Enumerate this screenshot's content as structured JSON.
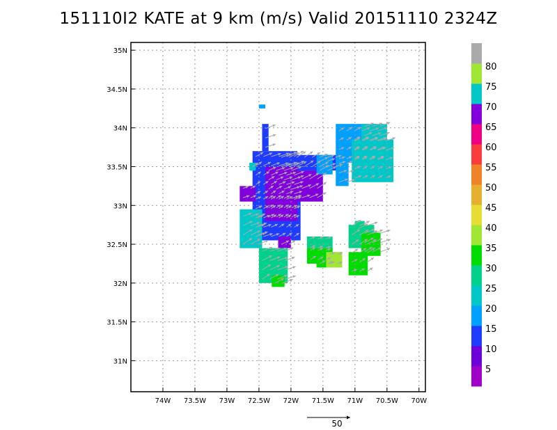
{
  "title": "151110I2 KATE at 9 km (m/s) Valid 20151110 2324Z",
  "chart_data": {
    "type": "heatmap",
    "title": "151110I2 KATE at 9 km (m/s) Valid 20151110 2324Z",
    "xlim": [
      -74.5,
      -69.9
    ],
    "ylim": [
      30.6,
      35.1
    ],
    "x_ticks": [
      {
        "value": -74.0,
        "label": "74W"
      },
      {
        "value": -73.5,
        "label": "73.5W"
      },
      {
        "value": -73.0,
        "label": "73W"
      },
      {
        "value": -72.5,
        "label": "72.5W"
      },
      {
        "value": -72.0,
        "label": "72W"
      },
      {
        "value": -71.5,
        "label": "71.5W"
      },
      {
        "value": -71.0,
        "label": "71W"
      },
      {
        "value": -70.5,
        "label": "70.5W"
      },
      {
        "value": -70.0,
        "label": "70W"
      }
    ],
    "y_ticks": [
      {
        "value": 31.0,
        "label": "31N"
      },
      {
        "value": 31.5,
        "label": "31.5N"
      },
      {
        "value": 32.0,
        "label": "32N"
      },
      {
        "value": 32.5,
        "label": "32.5N"
      },
      {
        "value": 33.0,
        "label": "33N"
      },
      {
        "value": 33.5,
        "label": "33.5N"
      },
      {
        "value": 34.0,
        "label": "34N"
      },
      {
        "value": 34.5,
        "label": "34.5N"
      },
      {
        "value": 35.0,
        "label": "35N"
      }
    ],
    "grid": true,
    "colorbar": {
      "labels": [
        "5",
        "10",
        "15",
        "20",
        "25",
        "30",
        "35",
        "40",
        "45",
        "50",
        "55",
        "60",
        "65",
        "70",
        "75",
        "80"
      ],
      "colors": [
        "#a000c8",
        "#6e00dc",
        "#1e3cff",
        "#00a0ff",
        "#00c8c8",
        "#00d28c",
        "#00dc00",
        "#a0e632",
        "#e6dc32",
        "#e6af2d",
        "#f08228",
        "#fa3c3c",
        "#f00082",
        "#8200dc",
        "#00c8c8",
        "#a0e632",
        "#aaaaaa"
      ]
    },
    "regions": [
      {
        "color": "#00a0ff",
        "value": 15,
        "cells": [
          [
            -72.5,
            34.25,
            -72.4,
            34.3
          ]
        ]
      },
      {
        "color": "#1e3cff",
        "value": 10,
        "cells": [
          [
            -72.6,
            33.1,
            -71.9,
            33.7
          ],
          [
            -72.6,
            32.55,
            -71.85,
            33.1
          ],
          [
            -72.45,
            33.7,
            -72.35,
            34.05
          ],
          [
            -72.2,
            33.45,
            -71.2,
            33.65
          ]
        ]
      },
      {
        "color": "#8200dc",
        "value": 5,
        "cells": [
          [
            -72.4,
            32.8,
            -71.9,
            33.5
          ],
          [
            -72.0,
            33.05,
            -71.5,
            33.45
          ],
          [
            -72.8,
            33.05,
            -72.55,
            33.25
          ],
          [
            -72.2,
            32.45,
            -72.0,
            32.6
          ]
        ]
      },
      {
        "color": "#00a0ff",
        "value": 15,
        "cells": [
          [
            -71.3,
            33.55,
            -70.6,
            34.05
          ],
          [
            -71.3,
            33.25,
            -71.1,
            33.6
          ],
          [
            -71.6,
            33.4,
            -71.35,
            33.65
          ]
        ]
      },
      {
        "color": "#00c8c8",
        "value": 20,
        "cells": [
          [
            -72.8,
            32.45,
            -72.45,
            32.95
          ],
          [
            -71.05,
            33.3,
            -70.4,
            33.85
          ],
          [
            -70.9,
            33.85,
            -70.5,
            34.05
          ],
          [
            -72.65,
            33.45,
            -72.55,
            33.55
          ]
        ]
      },
      {
        "color": "#00d28c",
        "value": 25,
        "cells": [
          [
            -72.5,
            32.0,
            -72.05,
            32.45
          ],
          [
            -71.75,
            32.4,
            -71.35,
            32.6
          ],
          [
            -71.1,
            32.45,
            -70.7,
            32.75
          ],
          [
            -71.0,
            32.65,
            -70.85,
            32.8
          ]
        ]
      },
      {
        "color": "#00dc00",
        "value": 30,
        "cells": [
          [
            -71.75,
            32.25,
            -71.35,
            32.45
          ],
          [
            -71.6,
            32.2,
            -71.4,
            32.3
          ],
          [
            -71.1,
            32.1,
            -70.8,
            32.4
          ],
          [
            -70.9,
            32.35,
            -70.6,
            32.65
          ],
          [
            -72.3,
            31.95,
            -72.1,
            32.1
          ]
        ]
      },
      {
        "color": "#a0e632",
        "value": 35,
        "cells": [
          [
            -71.45,
            32.2,
            -71.2,
            32.4
          ]
        ]
      }
    ],
    "wind_vectors_note": "gray arrows pointing mostly northeast",
    "reference_vector": {
      "label": "50"
    }
  }
}
